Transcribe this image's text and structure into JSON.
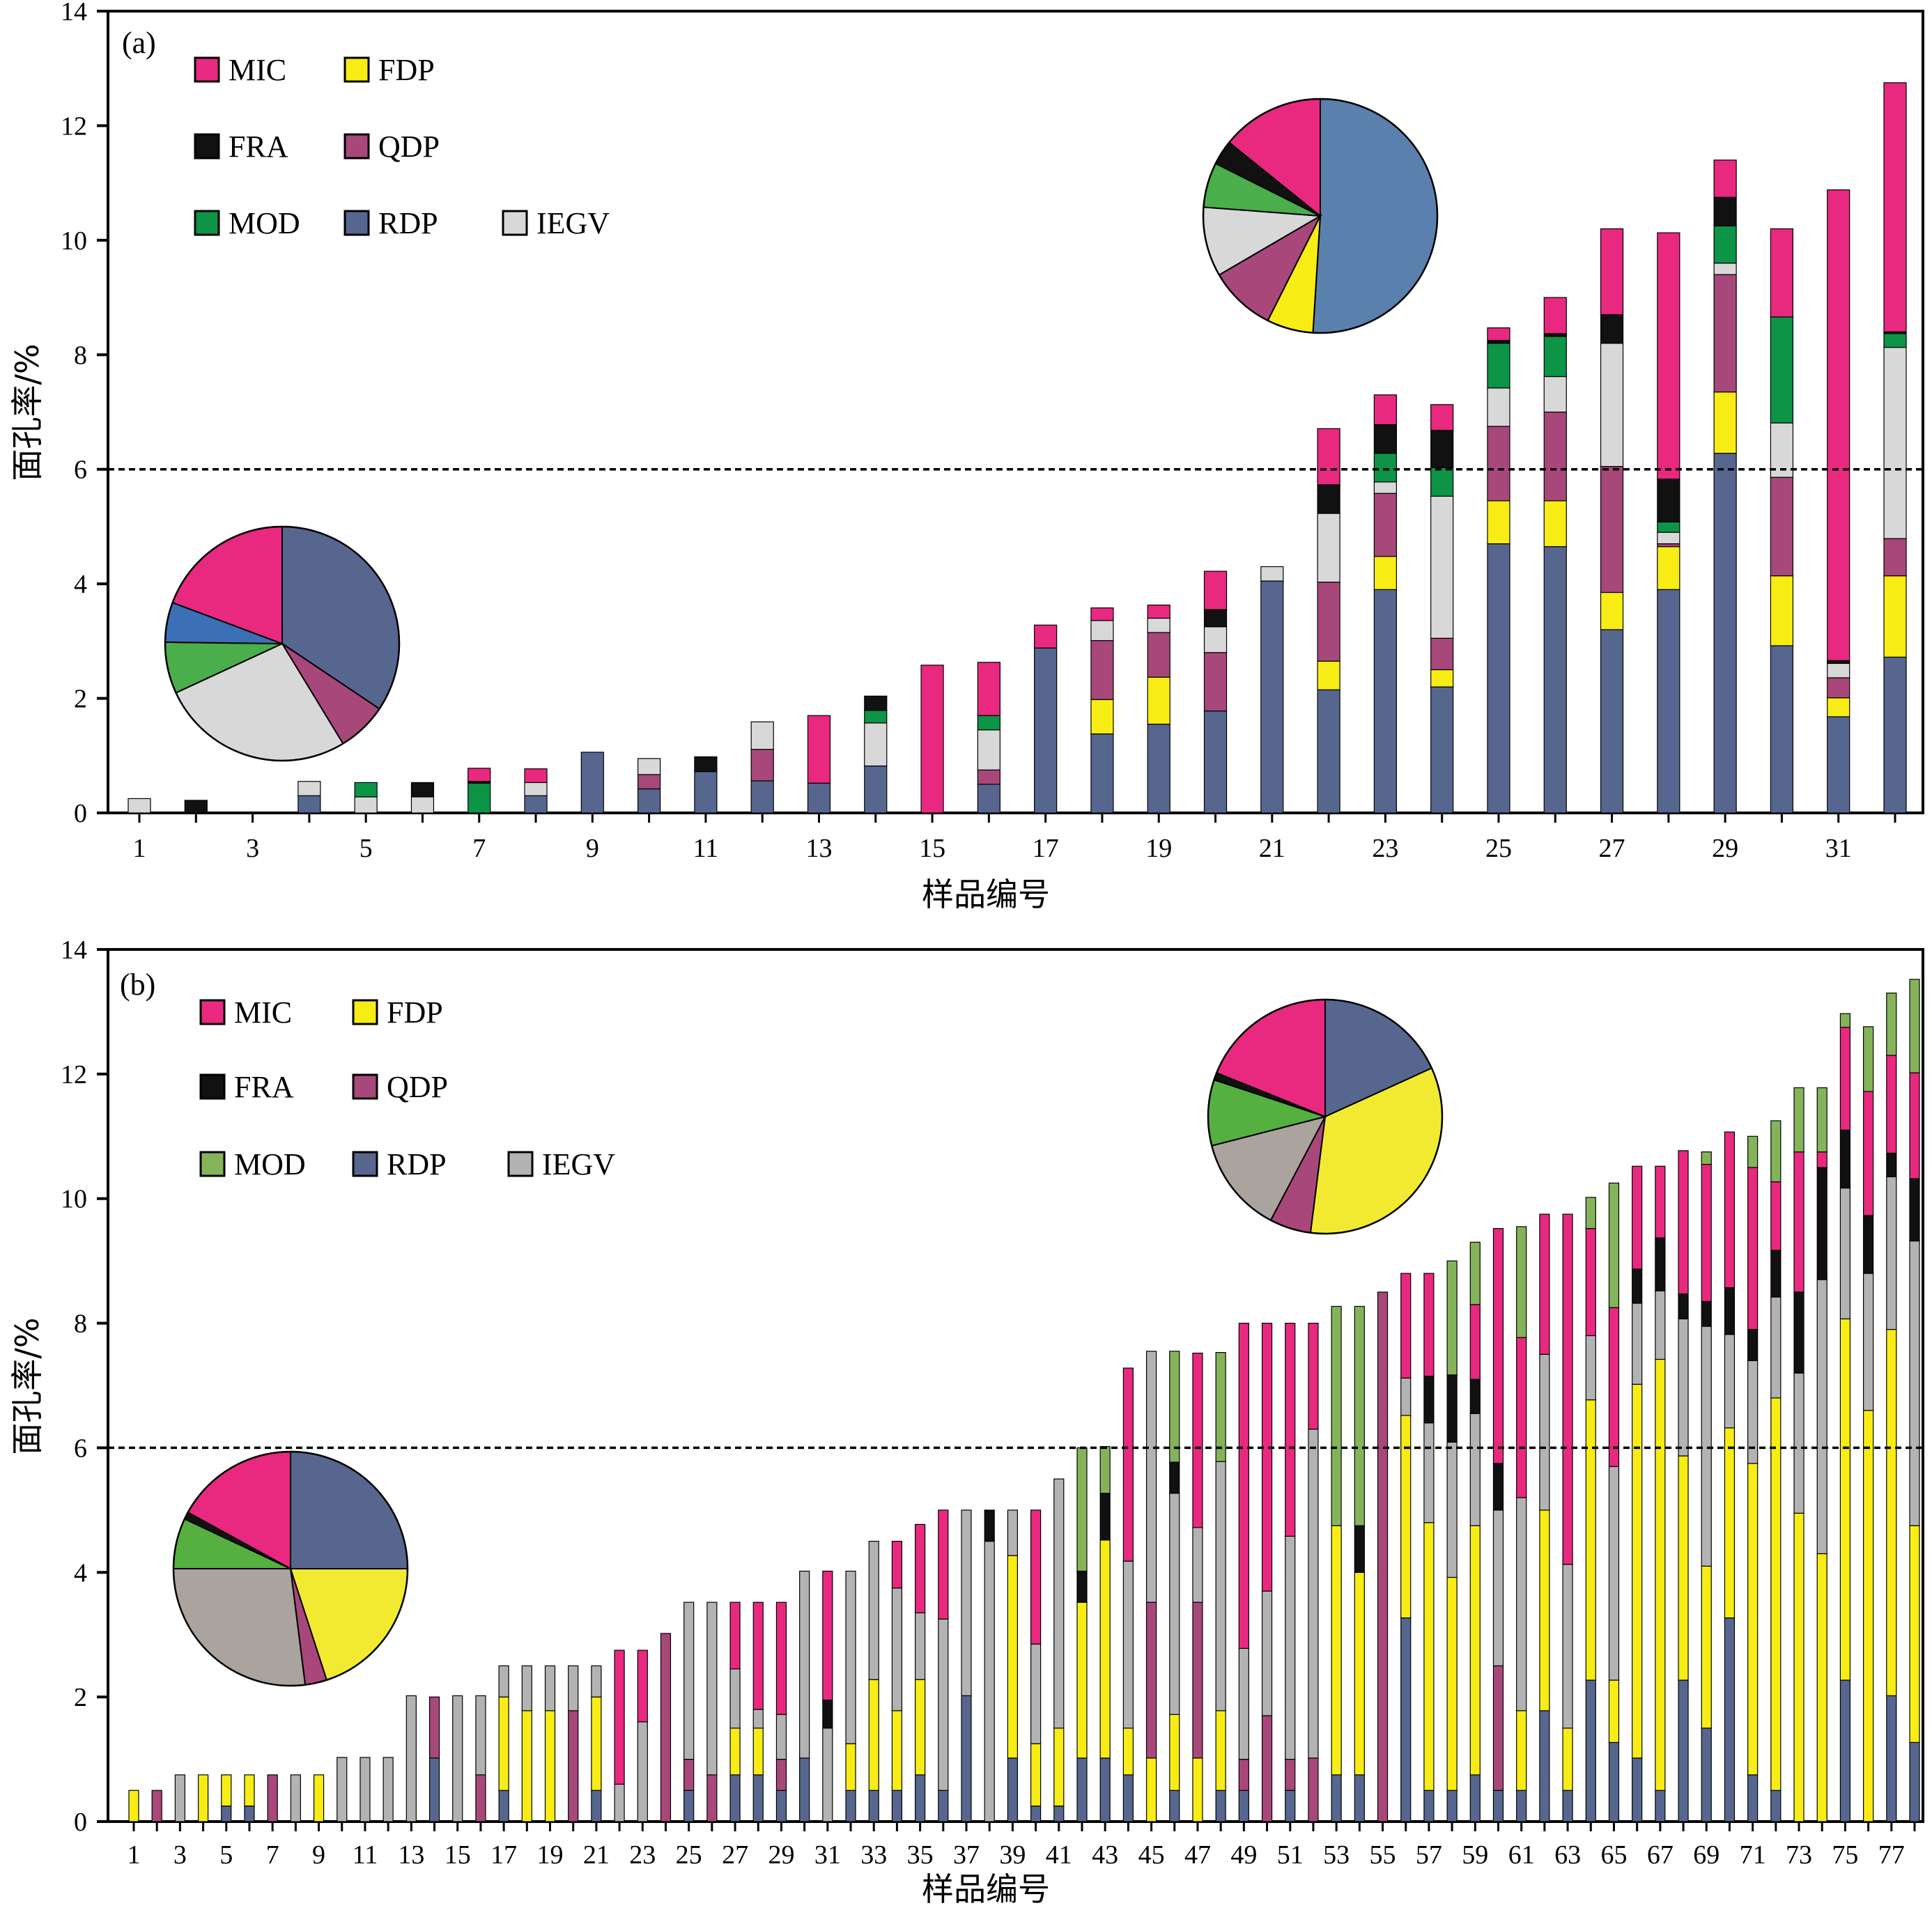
{
  "figure": {
    "legend_entries": [
      "MIC",
      "FDP",
      "FRA",
      "QDP",
      "MOD",
      "RDP",
      "IEGV"
    ],
    "colors": {
      "MIC": "#e8297f",
      "FDP": "#f7ec14",
      "FRA": "#111111",
      "QDP": "#a8477a",
      "MOD": "#0d9446",
      "RDP": "#56668f",
      "IEGV": "#d8d8d8",
      "MOD_b": "#85b35a",
      "IEGV_b": "#b3b3b3"
    },
    "threshold": 6
  },
  "chart_data": [
    {
      "type": "bar",
      "stacked": true,
      "panel_label": "(a)",
      "xlabel": "样品编号",
      "ylabel": "面孔率/%",
      "ylim": [
        0,
        14
      ],
      "yticks": [
        0,
        2,
        4,
        6,
        8,
        10,
        12,
        14
      ],
      "x_tick_labels": [
        "1",
        "3",
        "5",
        "7",
        "9",
        "11",
        "13",
        "15",
        "17",
        "19",
        "21",
        "23",
        "25",
        "27",
        "29",
        "31"
      ],
      "series_order": [
        "RDP",
        "FDP",
        "QDP",
        "IEGV",
        "MOD",
        "FRA",
        "MIC"
      ],
      "samples": [
        {
          "RDP": 0,
          "FDP": 0,
          "QDP": 0,
          "IEGV": 0.25,
          "MOD": 0,
          "FRA": 0,
          "MIC": 0
        },
        {
          "RDP": 0,
          "FDP": 0,
          "QDP": 0,
          "IEGV": 0,
          "MOD": 0,
          "FRA": 0.22,
          "MIC": 0
        },
        {
          "RDP": 0,
          "FDP": 0,
          "QDP": 0,
          "IEGV": 0,
          "MOD": 0,
          "FRA": 0,
          "MIC": 0
        },
        {
          "RDP": 0.3,
          "FDP": 0,
          "QDP": 0,
          "IEGV": 0.25,
          "MOD": 0,
          "FRA": 0,
          "MIC": 0
        },
        {
          "RDP": 0,
          "FDP": 0,
          "QDP": 0,
          "IEGV": 0.28,
          "MOD": 0.25,
          "FRA": 0,
          "MIC": 0
        },
        {
          "RDP": 0,
          "FDP": 0,
          "QDP": 0,
          "IEGV": 0.28,
          "MOD": 0,
          "FRA": 0.25,
          "MIC": 0
        },
        {
          "RDP": 0,
          "FDP": 0,
          "QDP": 0,
          "IEGV": 0,
          "MOD": 0.52,
          "FRA": 0.03,
          "MIC": 0.23
        },
        {
          "RDP": 0.3,
          "FDP": 0,
          "QDP": 0,
          "IEGV": 0.23,
          "MOD": 0,
          "FRA": 0,
          "MIC": 0.24
        },
        {
          "RDP": 1.06,
          "FDP": 0,
          "QDP": 0,
          "IEGV": 0,
          "MOD": 0,
          "FRA": 0,
          "MIC": 0
        },
        {
          "RDP": 0.42,
          "FDP": 0,
          "QDP": 0.25,
          "IEGV": 0.28,
          "MOD": 0,
          "FRA": 0,
          "MIC": 0
        },
        {
          "RDP": 0.72,
          "FDP": 0,
          "QDP": 0,
          "IEGV": 0,
          "MOD": 0,
          "FRA": 0.26,
          "MIC": 0
        },
        {
          "RDP": 0.56,
          "FDP": 0,
          "QDP": 0.55,
          "IEGV": 0.48,
          "MOD": 0,
          "FRA": 0,
          "MIC": 0
        },
        {
          "RDP": 0.52,
          "FDP": 0,
          "QDP": 0,
          "IEGV": 0,
          "MOD": 0,
          "FRA": 0,
          "MIC": 1.18
        },
        {
          "RDP": 0.82,
          "FDP": 0,
          "QDP": 0,
          "IEGV": 0.75,
          "MOD": 0.22,
          "FRA": 0.25,
          "MIC": 0
        },
        {
          "RDP": 0,
          "FDP": 0,
          "QDP": 0,
          "IEGV": 0,
          "MOD": 0,
          "FRA": 0,
          "MIC": 2.58
        },
        {
          "RDP": 0.5,
          "FDP": 0,
          "QDP": 0.25,
          "IEGV": 0.7,
          "MOD": 0.25,
          "FRA": 0,
          "MIC": 0.93
        },
        {
          "RDP": 2.88,
          "FDP": 0,
          "QDP": 0,
          "IEGV": 0,
          "MOD": 0,
          "FRA": 0,
          "MIC": 0.4
        },
        {
          "RDP": 1.38,
          "FDP": 0.6,
          "QDP": 1.03,
          "IEGV": 0.35,
          "MOD": 0,
          "FRA": 0,
          "MIC": 0.22
        },
        {
          "RDP": 1.55,
          "FDP": 0.82,
          "QDP": 0.78,
          "IEGV": 0.25,
          "MOD": 0,
          "FRA": 0,
          "MIC": 0.23
        },
        {
          "RDP": 1.78,
          "FDP": 0,
          "QDP": 1.02,
          "IEGV": 0.45,
          "MOD": 0,
          "FRA": 0.3,
          "MIC": 0.67
        },
        {
          "RDP": 4.05,
          "FDP": 0,
          "QDP": 0,
          "IEGV": 0.25,
          "MOD": 0,
          "FRA": 0,
          "MIC": 0
        },
        {
          "RDP": 2.15,
          "FDP": 0.5,
          "QDP": 1.38,
          "IEGV": 1.2,
          "MOD": 0,
          "FRA": 0.5,
          "MIC": 0.98
        },
        {
          "RDP": 3.9,
          "FDP": 0.58,
          "QDP": 1.1,
          "IEGV": 0.2,
          "MOD": 0.5,
          "FRA": 0.5,
          "MIC": 0.52
        },
        {
          "RDP": 2.2,
          "FDP": 0.3,
          "QDP": 0.55,
          "IEGV": 2.48,
          "MOD": 0.5,
          "FRA": 0.65,
          "MIC": 0.45
        },
        {
          "RDP": 4.7,
          "FDP": 0.75,
          "QDP": 1.3,
          "IEGV": 0.67,
          "MOD": 0.78,
          "FRA": 0.05,
          "MIC": 0.22
        },
        {
          "RDP": 4.65,
          "FDP": 0.8,
          "QDP": 1.55,
          "IEGV": 0.62,
          "MOD": 0.7,
          "FRA": 0.05,
          "MIC": 0.63
        },
        {
          "RDP": 3.2,
          "FDP": 0.65,
          "QDP": 2.2,
          "IEGV": 2.15,
          "MOD": 0,
          "FRA": 0.5,
          "MIC": 1.5
        },
        {
          "RDP": 3.9,
          "FDP": 0.75,
          "QDP": 0.05,
          "IEGV": 0.2,
          "MOD": 0.18,
          "FRA": 0.75,
          "MIC": 4.3
        },
        {
          "RDP": 6.28,
          "FDP": 1.07,
          "QDP": 2.05,
          "IEGV": 0.2,
          "MOD": 0.65,
          "FRA": 0.5,
          "MIC": 0.65
        },
        {
          "RDP": 2.92,
          "FDP": 1.22,
          "QDP": 1.72,
          "IEGV": 0.95,
          "MOD": 1.85,
          "FRA": 0,
          "MIC": 1.54
        },
        {
          "RDP": 1.68,
          "FDP": 0.33,
          "QDP": 0.35,
          "IEGV": 0.25,
          "MOD": 0,
          "FRA": 0.05,
          "MIC": 8.22
        },
        {
          "RDP": 2.72,
          "FDP": 1.42,
          "QDP": 0.65,
          "IEGV": 3.34,
          "MOD": 0.24,
          "FRA": 0.03,
          "MIC": 4.35
        }
      ]
    },
    {
      "type": "bar",
      "stacked": true,
      "panel_label": "(b)",
      "xlabel": "样品编号",
      "ylabel": "面孔率/%",
      "ylim": [
        0,
        14
      ],
      "yticks": [
        0,
        2,
        4,
        6,
        8,
        10,
        12,
        14
      ],
      "x_tick_labels": [
        "1",
        "3",
        "5",
        "7",
        "9",
        "11",
        "13",
        "15",
        "17",
        "19",
        "21",
        "23",
        "25",
        "27",
        "29",
        "31",
        "33",
        "35",
        "37",
        "39",
        "41",
        "43",
        "45",
        "47",
        "49",
        "51",
        "53",
        "55",
        "57",
        "59",
        "61",
        "63",
        "65",
        "67",
        "69",
        "71",
        "73",
        "75",
        "77"
      ],
      "series_order": [
        "RDP",
        "FDP",
        "QDP",
        "IEGV",
        "FRA",
        "MIC",
        "MOD"
      ],
      "samples": [
        {
          "FDP": 0.5
        },
        {
          "QDP": 0.5
        },
        {
          "IEGV": 0.75
        },
        {
          "FDP": 0.75
        },
        {
          "RDP": 0.25,
          "FDP": 0.5
        },
        {
          "RDP": 0.25,
          "FDP": 0.5
        },
        {
          "QDP": 0.75
        },
        {
          "IEGV": 0.75
        },
        {
          "FDP": 0.75
        },
        {
          "IEGV": 1.03
        },
        {
          "IEGV": 1.03
        },
        {
          "IEGV": 1.03
        },
        {
          "IEGV": 2.02
        },
        {
          "RDP": 1.02,
          "QDP": 0.98
        },
        {
          "IEGV": 2.02
        },
        {
          "QDP": 0.75,
          "IEGV": 1.27
        },
        {
          "RDP": 0.5,
          "FDP": 1.5,
          "IEGV": 0.5
        },
        {
          "FDP": 1.78,
          "IEGV": 0.72
        },
        {
          "FDP": 1.78,
          "IEGV": 0.72
        },
        {
          "QDP": 1.78,
          "IEGV": 0.72
        },
        {
          "RDP": 0.5,
          "FDP": 1.5,
          "IEGV": 0.5
        },
        {
          "IEGV": 0.6,
          "MIC": 2.15
        },
        {
          "IEGV": 1.6,
          "MIC": 1.15
        },
        {
          "QDP": 3.02
        },
        {
          "RDP": 0.5,
          "QDP": 0.5,
          "IEGV": 2.52
        },
        {
          "QDP": 0.75,
          "IEGV": 2.77
        },
        {
          "RDP": 0.75,
          "FDP": 0.75,
          "IEGV": 0.95,
          "MIC": 1.07
        },
        {
          "RDP": 0.75,
          "FDP": 0.75,
          "IEGV": 0.3,
          "MIC": 1.72
        },
        {
          "RDP": 0.5,
          "QDP": 0.5,
          "IEGV": 0.72,
          "MIC": 1.8
        },
        {
          "RDP": 1.02,
          "IEGV": 3.0
        },
        {
          "FRA": 0.45,
          "IEGV": 1.5,
          "MIC": 2.07
        },
        {
          "RDP": 0.5,
          "FDP": 0.75,
          "IEGV": 2.77
        },
        {
          "RDP": 0.5,
          "FDP": 1.78,
          "IEGV": 2.22
        },
        {
          "RDP": 0.5,
          "FDP": 1.28,
          "IEGV": 1.97,
          "MIC": 0.75
        },
        {
          "RDP": 0.75,
          "FDP": 1.53,
          "IEGV": 1.07,
          "MIC": 1.42
        },
        {
          "RDP": 0.5,
          "IEGV": 2.75,
          "MIC": 1.75
        },
        {
          "RDP": 2.02,
          "IEGV": 2.98
        },
        {
          "FRA": 0.5,
          "IEGV": 4.5
        },
        {
          "RDP": 1.02,
          "FDP": 3.25,
          "IEGV": 0.73
        },
        {
          "RDP": 0.25,
          "FDP": 1.0,
          "IEGV": 1.6,
          "MIC": 2.15
        },
        {
          "RDP": 0.25,
          "FDP": 1.25,
          "IEGV": 4.0
        },
        {
          "RDP": 1.02,
          "FDP": 2.5,
          "FRA": 0.5,
          "MOD": 1.98
        },
        {
          "RDP": 1.02,
          "FDP": 3.5,
          "FRA": 0.75,
          "MOD": 0.75
        },
        {
          "RDP": 0.75,
          "FDP": 0.75,
          "IEGV": 2.68,
          "MIC": 3.1
        },
        {
          "FDP": 1.02,
          "QDP": 2.5,
          "IEGV": 4.03
        },
        {
          "RDP": 0.5,
          "FDP": 1.22,
          "FRA": 0.5,
          "IEGV": 3.55,
          "MOD": 1.78
        },
        {
          "FDP": 1.02,
          "QDP": 2.5,
          "IEGV": 1.2,
          "MIC": 2.8
        },
        {
          "RDP": 0.5,
          "FDP": 1.28,
          "IEGV": 4.0,
          "MOD": 1.75
        },
        {
          "RDP": 0.5,
          "QDP": 0.5,
          "IEGV": 1.78,
          "MIC": 5.22
        },
        {
          "QDP": 1.7,
          "IEGV": 2.0,
          "MIC": 4.3
        },
        {
          "RDP": 0.5,
          "QDP": 0.5,
          "IEGV": 3.58,
          "MIC": 3.42
        },
        {
          "QDP": 1.02,
          "IEGV": 5.28,
          "MIC": 1.7
        },
        {
          "RDP": 0.75,
          "FDP": 4.0,
          "MOD": 3.52
        },
        {
          "RDP": 0.75,
          "FDP": 3.25,
          "FRA": 0.75,
          "MOD": 3.52
        },
        {
          "QDP": 8.5
        },
        {
          "RDP": 3.27,
          "FDP": 3.25,
          "IEGV": 0.6,
          "MIC": 1.68
        },
        {
          "RDP": 0.5,
          "FDP": 4.3,
          "FRA": 0.75,
          "IEGV": 1.6,
          "MIC": 1.65
        },
        {
          "RDP": 0.5,
          "FDP": 3.42,
          "FRA": 1.08,
          "IEGV": 2.17,
          "MOD": 1.83
        },
        {
          "RDP": 0.75,
          "FDP": 4.0,
          "FRA": 0.55,
          "IEGV": 1.8,
          "MIC": 1.2,
          "MOD": 1.0
        },
        {
          "RDP": 0.5,
          "QDP": 2.0,
          "FRA": 0.75,
          "IEGV": 2.5,
          "MIC": 3.77
        },
        {
          "RDP": 0.5,
          "FDP": 1.28,
          "IEGV": 3.42,
          "MIC": 2.57,
          "MOD": 1.78
        },
        {
          "RDP": 1.78,
          "FDP": 3.22,
          "IEGV": 2.5,
          "MIC": 2.25
        },
        {
          "RDP": 0.5,
          "FDP": 1.0,
          "IEGV": 2.63,
          "MIC": 5.62
        },
        {
          "RDP": 2.27,
          "FDP": 4.5,
          "IEGV": 1.03,
          "MIC": 1.72,
          "MOD": 0.5
        },
        {
          "RDP": 1.27,
          "FDP": 1.0,
          "IEGV": 3.43,
          "MIC": 2.55,
          "MOD": 2.0
        },
        {
          "RDP": 1.02,
          "FDP": 6.0,
          "FRA": 0.55,
          "IEGV": 1.3,
          "MIC": 1.65
        },
        {
          "RDP": 0.5,
          "FDP": 6.92,
          "FRA": 0.85,
          "IEGV": 1.1,
          "MIC": 1.15
        },
        {
          "RDP": 2.27,
          "FDP": 3.6,
          "FRA": 0.4,
          "IEGV": 2.2,
          "MIC": 2.3
        },
        {
          "RDP": 1.5,
          "FDP": 2.6,
          "FRA": 0.4,
          "IEGV": 3.85,
          "MIC": 2.2,
          "MOD": 0.2
        },
        {
          "RDP": 3.27,
          "FDP": 3.05,
          "FRA": 0.75,
          "IEGV": 1.5,
          "MIC": 2.5
        },
        {
          "RDP": 0.75,
          "FDP": 5.0,
          "FRA": 0.5,
          "IEGV": 1.65,
          "MIC": 2.6,
          "MOD": 0.5
        },
        {
          "RDP": 0.5,
          "FDP": 6.3,
          "FRA": 0.75,
          "IEGV": 1.62,
          "MIC": 1.1,
          "MOD": 0.98
        },
        {
          "FDP": 4.95,
          "FRA": 1.3,
          "IEGV": 2.25,
          "MIC": 2.25,
          "MOD": 1.03
        },
        {
          "FDP": 4.3,
          "FRA": 1.8,
          "IEGV": 4.4,
          "MIC": 0.25,
          "MOD": 1.03
        },
        {
          "RDP": 2.27,
          "FDP": 5.8,
          "FRA": 0.93,
          "IEGV": 2.1,
          "MIC": 1.65,
          "MOD": 0.22
        },
        {
          "FDP": 6.6,
          "FRA": 0.93,
          "IEGV": 2.2,
          "MIC": 1.99,
          "MOD": 1.04
        },
        {
          "RDP": 2.02,
          "FDP": 5.88,
          "FRA": 0.38,
          "IEGV": 2.45,
          "MIC": 1.57,
          "MOD": 1.0
        },
        {
          "RDP": 1.27,
          "FDP": 3.48,
          "FRA": 1.0,
          "IEGV": 4.57,
          "MIC": 1.7,
          "MOD": 1.5
        }
      ]
    }
  ],
  "pies": [
    {
      "panel": 0,
      "position": "lower-left",
      "slices": {
        "MIC": 0.193,
        "RDP_blue": 0.055,
        "MOD": 0.071,
        "IEGV": 0.268,
        "QDP": 0.069,
        "RDP": 0.344
      }
    },
    {
      "panel": 0,
      "position": "upper-right",
      "slices": {
        "MIC": 0.142,
        "FRA": 0.034,
        "MOD": 0.062,
        "IEGV": 0.096,
        "QDP": 0.092,
        "FDP": 0.064,
        "RDP": 0.51
      }
    },
    {
      "panel": 1,
      "position": "lower-left",
      "slices": {
        "MIC": 0.17,
        "FRA": 0.01,
        "MOD": 0.07,
        "IEGV": 0.27,
        "QDP": 0.03,
        "FDP": 0.2,
        "RDP": 0.25
      }
    },
    {
      "panel": 1,
      "position": "upper-right",
      "slices": {
        "MIC": 0.189,
        "FRA": 0.01,
        "MOD": 0.091,
        "IEGV": 0.133,
        "QDP": 0.057,
        "FDP": 0.338,
        "RDP": 0.182
      }
    }
  ]
}
